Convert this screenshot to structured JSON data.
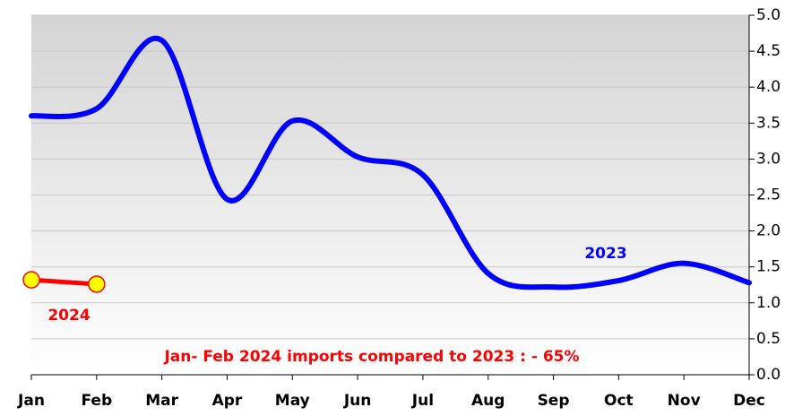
{
  "chart_data": {
    "type": "line",
    "categories": [
      "Jan",
      "Feb",
      "Mar",
      "Apr",
      "May",
      "Jun",
      "Jul",
      "Aug",
      "Sep",
      "Oct",
      "Nov",
      "Dec"
    ],
    "series": [
      {
        "name": "2023",
        "color": "#0000ff",
        "smooth": true,
        "values": [
          3.6,
          3.7,
          4.65,
          2.44,
          3.53,
          3.03,
          2.78,
          1.41,
          1.22,
          1.31,
          1.55,
          1.28
        ]
      },
      {
        "name": "2024",
        "color": "#ff0000",
        "marker_color": "#ffff00",
        "smooth": false,
        "values": [
          1.32,
          1.26,
          null,
          null,
          null,
          null,
          null,
          null,
          null,
          null,
          null,
          null
        ]
      }
    ],
    "annotation": "Jan- Feb 2024 imports compared to 2023 : - 65%",
    "ylim": [
      0,
      5
    ],
    "yticks": [
      {
        "value": 0,
        "label": "0.0"
      },
      0.5,
      {
        "value": 1,
        "label": "1.0"
      },
      1.5,
      {
        "value": 2,
        "label": "2.0"
      },
      2.5,
      {
        "value": 3,
        "label": "3.0"
      },
      3.5,
      {
        "value": 4,
        "label": "4.0"
      },
      4.5,
      {
        "value": 5,
        "label": "5.0"
      }
    ],
    "grid": true,
    "y_axis_side": "right"
  }
}
